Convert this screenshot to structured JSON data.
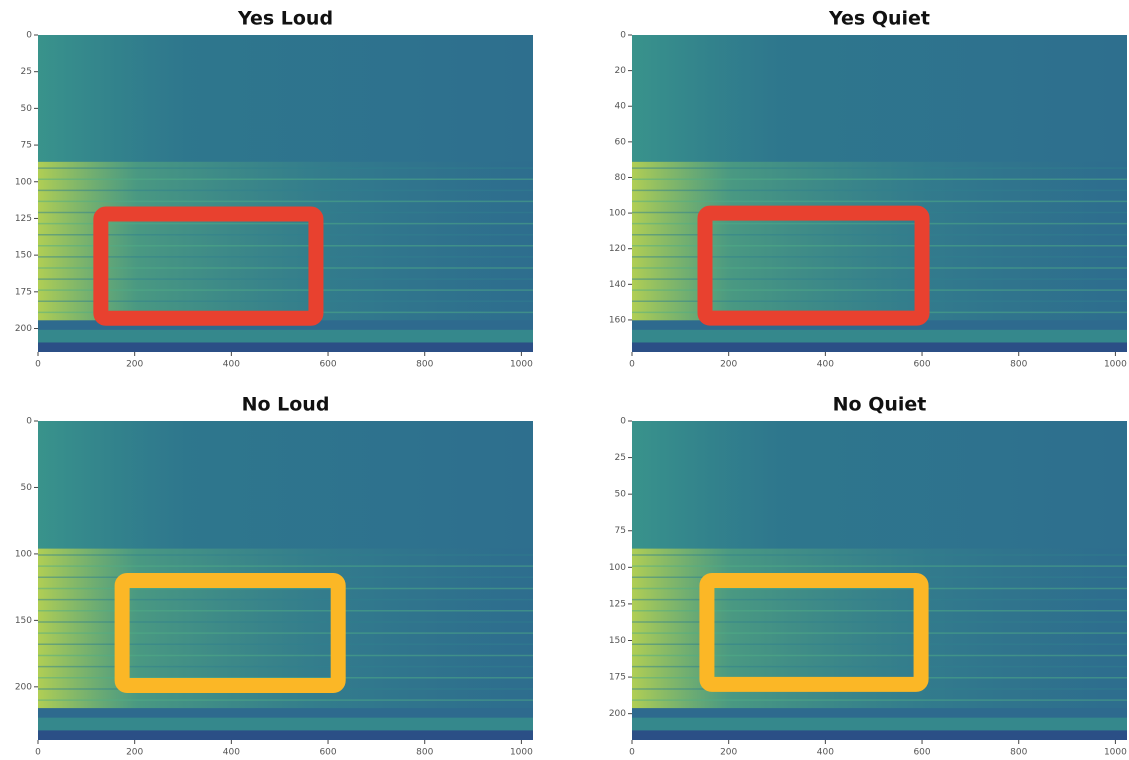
{
  "chart_data": [
    {
      "type": "spectrogram",
      "title": "Yes Loud",
      "xlim": [
        0,
        1024
      ],
      "ylim": [
        216,
        0
      ],
      "xticks": [
        0,
        200,
        400,
        600,
        800,
        1000
      ],
      "yticks": [
        0,
        25,
        50,
        75,
        100,
        125,
        150,
        175,
        200
      ],
      "highlight": {
        "x": [
          130,
          575
        ],
        "y": [
          122,
          193
        ],
        "color": "#e8412f"
      }
    },
    {
      "type": "spectrogram",
      "title": "Yes Quiet",
      "xlim": [
        0,
        1024
      ],
      "ylim": [
        178,
        0
      ],
      "xticks": [
        0,
        200,
        400,
        600,
        800,
        1000
      ],
      "yticks": [
        0,
        20,
        40,
        60,
        80,
        100,
        120,
        140,
        160
      ],
      "highlight": {
        "x": [
          151,
          600
        ],
        "y": [
          100,
          159
        ],
        "color": "#e8412f"
      }
    },
    {
      "type": "spectrogram",
      "title": "No Loud",
      "xlim": [
        0,
        1024
      ],
      "ylim": [
        240,
        0
      ],
      "xticks": [
        0,
        200,
        400,
        600,
        800,
        1000
      ],
      "yticks": [
        0,
        50,
        100,
        150,
        200
      ],
      "highlight": {
        "x": [
          174,
          621
        ],
        "y": [
          120,
          199
        ],
        "color": "#fbb726"
      }
    },
    {
      "type": "spectrogram",
      "title": "No Quiet",
      "xlim": [
        0,
        1024
      ],
      "ylim": [
        218,
        0
      ],
      "xticks": [
        0,
        200,
        400,
        600,
        800,
        1000
      ],
      "yticks": [
        0,
        25,
        50,
        75,
        100,
        125,
        150,
        175,
        200
      ],
      "highlight": {
        "x": [
          155,
          598
        ],
        "y": [
          109,
          180
        ],
        "color": "#fbb726"
      }
    }
  ]
}
